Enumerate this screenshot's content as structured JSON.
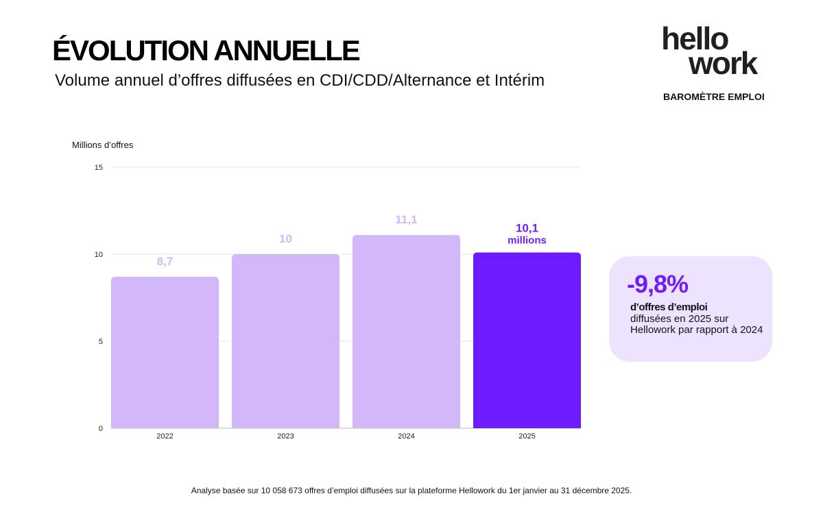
{
  "header": {
    "title": "ÉVOLUTION ANNUELLE",
    "subtitle": "Volume annuel d’offres diffusées en CDI/CDD/Alternance et Intérim"
  },
  "logo": {
    "line1": "hello",
    "line2": "work",
    "tagline": "BAROMÈTRE EMPLOI"
  },
  "callout": {
    "value": "-9,8%",
    "bold": "d’offres d’emploi",
    "text": "diffusées en 2025 sur Hellowork par rapport à 2024"
  },
  "footnote": "Analyse basée sur 10 058 673 offres d’emploi diffusées sur la plateforme Hellowork du 1er janvier au 31 décembre 2025.",
  "colors": {
    "bar": "#d2b8f8",
    "highlight": "#6e1cff",
    "callout_bg": "#ede3fe"
  },
  "chart_data": {
    "type": "bar",
    "ylabel": "Millions d’offres",
    "categories": [
      "2022",
      "2023",
      "2024",
      "2025"
    ],
    "values": [
      8.7,
      10,
      11.1,
      10.1
    ],
    "data_labels": [
      "8,7",
      "10",
      "11,1",
      "10,1"
    ],
    "highlight_suffix": "millions",
    "highlight_index": 3,
    "ylim": [
      0,
      15
    ],
    "yticks": [
      0,
      5,
      10,
      15
    ],
    "grid": true
  }
}
